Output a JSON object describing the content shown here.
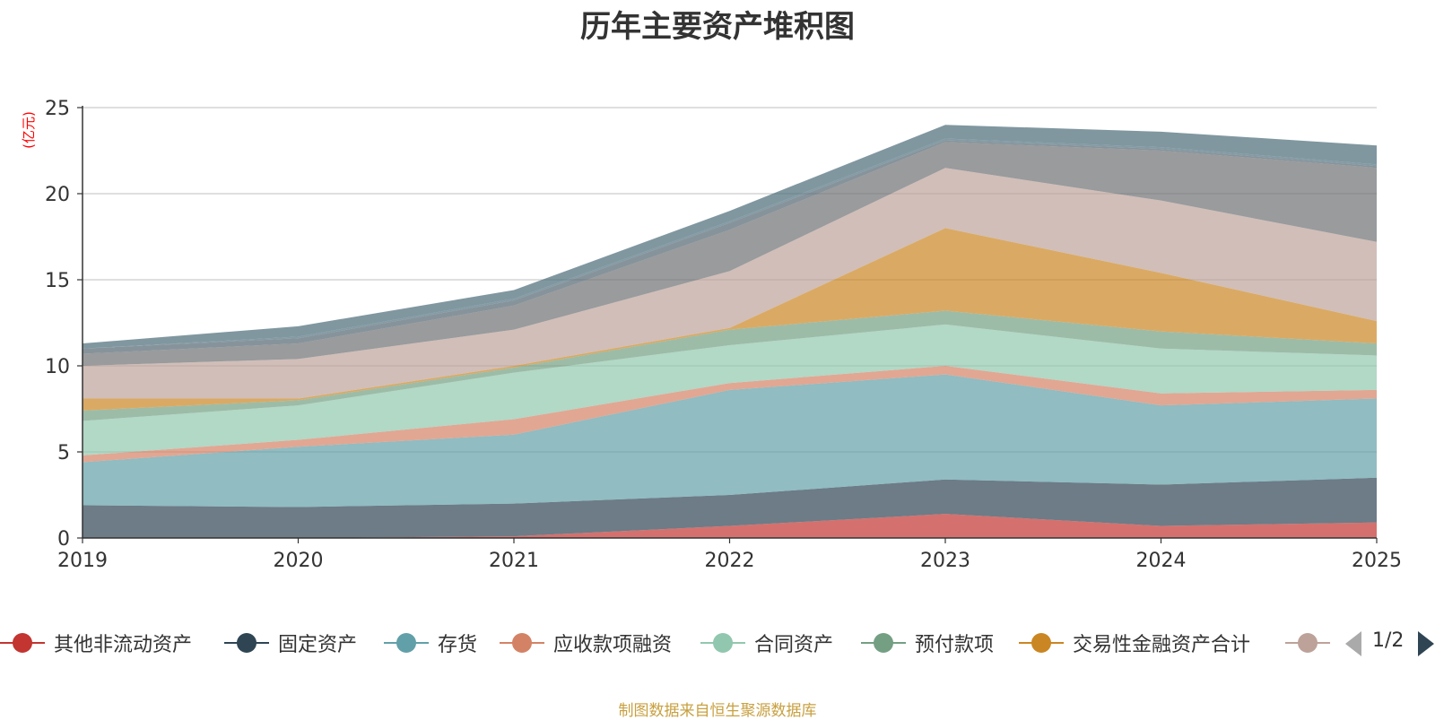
{
  "chart_data": {
    "type": "area",
    "stacked": true,
    "title": "历年主要资产堆积图",
    "ylabel": "(亿元)",
    "xlabel": "",
    "categories": [
      "2019",
      "2020",
      "2021",
      "2022",
      "2023",
      "2024",
      "2025"
    ],
    "ylim": [
      0,
      25
    ],
    "yticks": [
      0,
      5,
      10,
      15,
      20,
      25
    ],
    "grid": true,
    "series": [
      {
        "name": "其他非流动资产",
        "color": "#c23531",
        "values": [
          0.0,
          0.0,
          0.1,
          0.7,
          1.4,
          0.7,
          0.9
        ]
      },
      {
        "name": "固定资产",
        "color": "#2f4554",
        "values": [
          1.9,
          1.8,
          1.9,
          1.8,
          2.0,
          2.4,
          2.6
        ]
      },
      {
        "name": "存货",
        "color": "#61a0a8",
        "values": [
          2.5,
          3.5,
          4.0,
          6.1,
          6.1,
          4.6,
          4.6
        ]
      },
      {
        "name": "应收款项融资",
        "color": "#d48265",
        "values": [
          0.4,
          0.4,
          0.9,
          0.4,
          0.5,
          0.7,
          0.5
        ]
      },
      {
        "name": "合同资产",
        "color": "#91c7ae",
        "values": [
          2.0,
          2.0,
          2.7,
          2.2,
          2.4,
          2.6,
          2.0
        ]
      },
      {
        "name": "预付款项",
        "color": "#749f83",
        "values": [
          0.6,
          0.3,
          0.3,
          0.9,
          0.8,
          1.0,
          0.7
        ]
      },
      {
        "name": "交易性金融资产合计",
        "color": "#ca8622",
        "values": [
          0.7,
          0.1,
          0.1,
          0.1,
          4.8,
          3.4,
          1.3
        ]
      },
      {
        "name": "",
        "color": "#bda29a",
        "values": [
          1.9,
          2.3,
          2.1,
          3.3,
          3.5,
          4.2,
          4.6
        ]
      },
      {
        "name": "",
        "color": "#6e7074",
        "values": [
          0.7,
          0.9,
          1.4,
          2.4,
          1.5,
          2.9,
          4.3
        ]
      },
      {
        "name": "",
        "color": "#546570",
        "values": [
          0.3,
          0.3,
          0.3,
          0.4,
          0.1,
          0.1,
          0.1
        ]
      },
      {
        "name": "",
        "color": "#50707f",
        "values": [
          0.0,
          0.1,
          0.1,
          0.1,
          0.1,
          0.1,
          0.1
        ]
      },
      {
        "name": "",
        "color": "#4a6b78",
        "values": [
          0.3,
          0.6,
          0.5,
          0.6,
          0.8,
          0.9,
          1.1
        ]
      }
    ],
    "area_opacity": 0.7,
    "legend_position": "bottom",
    "legend_page": "1/2",
    "axis_label_color": "#ff0000"
  },
  "footer": {
    "source": "制图数据来自恒生聚源数据库"
  }
}
